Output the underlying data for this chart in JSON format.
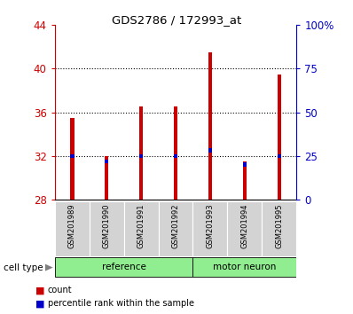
{
  "title": "GDS2786 / 172993_at",
  "samples": [
    "GSM201989",
    "GSM201990",
    "GSM201991",
    "GSM201992",
    "GSM201993",
    "GSM201994",
    "GSM201995"
  ],
  "groups": [
    "reference",
    "reference",
    "reference",
    "reference",
    "motor neuron",
    "motor neuron",
    "motor neuron"
  ],
  "bar_bottom": 28,
  "count_values": [
    35.5,
    32.0,
    36.5,
    36.5,
    41.5,
    31.5,
    39.5
  ],
  "percentile_left_values": [
    32.0,
    31.5,
    32.0,
    32.0,
    32.5,
    31.2,
    32.0
  ],
  "ylim_left": [
    28,
    44
  ],
  "yticks_left": [
    28,
    32,
    36,
    40,
    44
  ],
  "ylim_right": [
    0,
    100
  ],
  "yticks_right": [
    0,
    25,
    50,
    75,
    100
  ],
  "ytick_labels_right": [
    "0",
    "25",
    "50",
    "75",
    "100%"
  ],
  "left_axis_color": "#cc0000",
  "right_axis_color": "#0000cc",
  "bar_color_count": "#cc0000",
  "bar_color_percentile": "#0000cc",
  "bar_width": 0.12,
  "pct_bar_height": 0.35,
  "background_color": "#ffffff",
  "gray_bg": "#d3d3d3",
  "green_bg": "#90EE90",
  "group_label": "cell type"
}
